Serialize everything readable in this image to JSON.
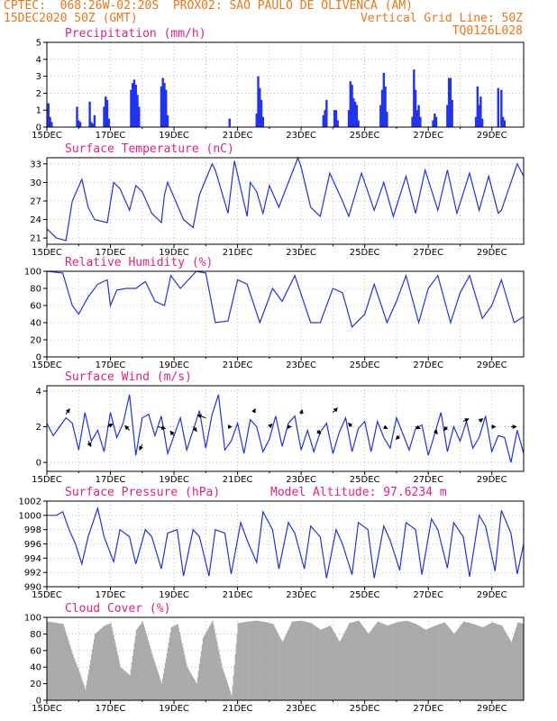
{
  "header": {
    "source": "CPTEC:",
    "coords": "068:26W-02:20S",
    "location": "PROX02: SAO PAULO DE OLIVENCA (AM)",
    "datetime": "15DEC2020 50Z (GMT)",
    "grid_note": "Vertical Grid Line: 50Z",
    "code": "TQ0126L028"
  },
  "colors": {
    "header": "#e8761a",
    "title": "#e0208a",
    "line": "#2233dd",
    "bar": "#2233ee",
    "cloud": "#aaaaaa"
  },
  "chart_data": [
    {
      "type": "bar",
      "title": "Precipitation (mm/h)",
      "ylim": [
        0,
        5
      ],
      "yticks": [
        "0",
        "1",
        "2",
        "3",
        "4",
        "5"
      ],
      "xticks": [
        "15DEC",
        "17DEC",
        "19DEC",
        "21DEC",
        "23DEC",
        "25DEC",
        "27DEC",
        "29DEC"
      ],
      "x_range_days": [
        0,
        15
      ],
      "series": [
        {
          "name": "precipitation",
          "x": [
            0.05,
            0.1,
            0.15,
            0.95,
            1.0,
            1.05,
            1.35,
            1.4,
            1.45,
            1.5,
            1.8,
            1.85,
            1.9,
            1.95,
            2.65,
            2.7,
            2.75,
            2.8,
            2.85,
            2.9,
            3.6,
            3.65,
            3.7,
            3.75,
            3.8,
            5.75,
            6.6,
            6.65,
            6.7,
            6.75,
            6.8,
            8.7,
            8.75,
            8.8,
            9.05,
            9.1,
            9.15,
            9.5,
            9.55,
            9.6,
            9.65,
            9.7,
            9.75,
            9.8,
            10.5,
            10.55,
            10.6,
            10.65,
            10.7,
            11.5,
            11.55,
            11.6,
            11.65,
            11.7,
            11.75,
            12.15,
            12.2,
            12.25,
            12.6,
            12.65,
            12.7,
            12.75,
            13.5,
            13.55,
            13.6,
            13.65,
            13.7,
            14.2,
            14.3,
            14.35,
            14.4
          ],
          "values": [
            1.4,
            0.6,
            0.3,
            1.2,
            0.4,
            0.3,
            1.5,
            0.3,
            0.2,
            0.7,
            1.2,
            1.8,
            1.6,
            0.5,
            2.2,
            2.6,
            2.8,
            2.5,
            1.9,
            1.2,
            2.4,
            2.9,
            2.6,
            2.2,
            0.7,
            0.5,
            0.8,
            3.0,
            2.3,
            1.6,
            0.6,
            0.7,
            1.0,
            1.6,
            1.0,
            1.0,
            0.4,
            1.0,
            2.7,
            2.5,
            1.7,
            1.5,
            1.3,
            0.4,
            1.3,
            2.2,
            3.2,
            2.4,
            0.9,
            0.6,
            3.4,
            2.2,
            1.0,
            1.3,
            0.6,
            0.4,
            0.8,
            0.6,
            1.3,
            2.9,
            2.9,
            1.6,
            0.6,
            2.4,
            1.3,
            1.8,
            0.5,
            2.3,
            2.2,
            0.6,
            0.4
          ]
        }
      ]
    },
    {
      "type": "line",
      "title": "Surface Temperature (nC)",
      "ylim": [
        20,
        34
      ],
      "yticks": [
        "21",
        "24",
        "27",
        "30",
        "33"
      ],
      "xticks": [
        "15DEC",
        "17DEC",
        "19DEC",
        "21DEC",
        "23DEC",
        "25DEC",
        "27DEC",
        "29DEC"
      ],
      "x_range_days": [
        0,
        15
      ],
      "series": [
        {
          "name": "temperature",
          "x": [
            0,
            0.3,
            0.6,
            0.8,
            1.1,
            1.3,
            1.5,
            1.9,
            2.1,
            2.3,
            2.6,
            2.8,
            3.0,
            3.3,
            3.6,
            3.7,
            3.8,
            4.3,
            4.6,
            4.8,
            5.2,
            5.3,
            5.7,
            5.9,
            6.3,
            6.4,
            6.6,
            6.8,
            7.0,
            7.3,
            7.6,
            7.9,
            8.0,
            8.3,
            8.6,
            8.9,
            9.3,
            9.5,
            9.9,
            10.3,
            10.6,
            10.9,
            11.3,
            11.6,
            11.9,
            12.3,
            12.6,
            12.9,
            13.3,
            13.6,
            13.9,
            14.2,
            14.3,
            14.6,
            14.8,
            15.0
          ],
          "values": [
            22.5,
            21,
            20.6,
            27,
            30.5,
            26,
            24,
            23.5,
            30,
            29,
            25.5,
            29.5,
            28.5,
            25,
            23.5,
            28,
            30,
            24,
            22.7,
            28,
            33,
            32,
            25,
            33.5,
            24.5,
            30,
            28.5,
            25,
            29.5,
            26,
            30,
            34,
            32.5,
            26,
            24.5,
            31.5,
            27,
            24.5,
            31.5,
            25.5,
            30,
            24.5,
            31,
            25,
            32,
            25.5,
            32,
            25,
            31.5,
            25.5,
            31,
            25,
            25.5,
            30,
            33,
            31
          ]
        }
      ]
    },
    {
      "type": "line",
      "title": "Relative Humidity (%)",
      "ylim": [
        0,
        100
      ],
      "yticks": [
        "0",
        "20",
        "40",
        "60",
        "80",
        "100"
      ],
      "xticks": [
        "15DEC",
        "17DEC",
        "19DEC",
        "21DEC",
        "23DEC",
        "25DEC",
        "27DEC",
        "29DEC"
      ],
      "x_range_days": [
        0,
        15
      ],
      "series": [
        {
          "name": "humidity",
          "x": [
            0,
            0.5,
            0.8,
            1.0,
            1.3,
            1.6,
            1.9,
            2.0,
            2.2,
            2.5,
            2.8,
            3.1,
            3.4,
            3.7,
            3.9,
            4.2,
            4.7,
            5.0,
            5.3,
            5.7,
            6.0,
            6.3,
            6.7,
            7.1,
            7.4,
            7.8,
            8.3,
            8.6,
            9.0,
            9.3,
            9.6,
            10.0,
            10.3,
            10.7,
            11.0,
            11.3,
            11.7,
            12.0,
            12.3,
            12.7,
            13.0,
            13.3,
            13.7,
            14.0,
            14.3,
            14.7,
            15.0
          ],
          "values": [
            100,
            98,
            60,
            50,
            70,
            85,
            90,
            60,
            78,
            80,
            80,
            88,
            65,
            60,
            95,
            80,
            100,
            98,
            40,
            42,
            90,
            85,
            40,
            80,
            65,
            95,
            40,
            40,
            80,
            75,
            35,
            50,
            85,
            40,
            65,
            95,
            40,
            80,
            95,
            40,
            75,
            95,
            45,
            60,
            90,
            40,
            47
          ]
        }
      ]
    },
    {
      "type": "line",
      "title": "Surface Wind (m/s)",
      "ylim": [
        -0.5,
        4.3
      ],
      "yticks": [
        "0",
        "2",
        "4"
      ],
      "xticks": [
        "15DEC",
        "17DEC",
        "19DEC",
        "21DEC",
        "23DEC",
        "25DEC",
        "27DEC",
        "29DEC"
      ],
      "x_range_days": [
        0,
        15
      ],
      "series": [
        {
          "name": "wind_speed",
          "x": [
            0,
            0.2,
            0.4,
            0.6,
            0.8,
            1.0,
            1.2,
            1.4,
            1.6,
            1.8,
            2.0,
            2.2,
            2.4,
            2.6,
            2.8,
            3.0,
            3.2,
            3.4,
            3.6,
            3.8,
            4.0,
            4.2,
            4.4,
            4.6,
            4.8,
            5.0,
            5.2,
            5.4,
            5.6,
            5.8,
            6.0,
            6.2,
            6.4,
            6.6,
            6.8,
            7.0,
            7.2,
            7.4,
            7.6,
            7.8,
            8.0,
            8.2,
            8.4,
            8.6,
            8.8,
            9.0,
            9.2,
            9.4,
            9.6,
            9.8,
            10.0,
            10.2,
            10.4,
            10.6,
            10.8,
            11.0,
            11.2,
            11.4,
            11.6,
            11.8,
            12.0,
            12.2,
            12.4,
            12.6,
            12.8,
            13.0,
            13.2,
            13.4,
            13.6,
            13.8,
            14.0,
            14.2,
            14.4,
            14.6,
            14.8,
            15.0
          ],
          "values": [
            2.2,
            1.5,
            2.0,
            2.5,
            2.2,
            0.7,
            2.8,
            1.2,
            1.8,
            0.6,
            2.8,
            1.4,
            2.2,
            3.8,
            0.4,
            2.5,
            2.7,
            1.5,
            2.6,
            0.5,
            1.5,
            2.5,
            0.7,
            1.8,
            2.9,
            0.8,
            2.7,
            3.8,
            0.7,
            1.2,
            2.2,
            0.5,
            2.4,
            2.0,
            0.6,
            1.3,
            2.6,
            0.9,
            2.2,
            2.6,
            0.7,
            1.8,
            0.6,
            1.7,
            2.2,
            0.5,
            1.7,
            2.5,
            0.6,
            1.9,
            2.3,
            0.6,
            2.3,
            1.4,
            0.8,
            2.5,
            1.6,
            0.7,
            1.9,
            2.1,
            0.4,
            1.6,
            2.8,
            0.6,
            2.0,
            1.2,
            2.3,
            0.8,
            1.4,
            2.6,
            0.6,
            1.5,
            1.4,
            0.0,
            1.8,
            0.5
          ]
        }
      ]
    },
    {
      "type": "line",
      "title": "Surface Pressure (hPa)",
      "subtitle": "Model Altitude: 97.6234 m",
      "ylim": [
        990,
        1002
      ],
      "yticks": [
        "990",
        "992",
        "994",
        "996",
        "998",
        "1000",
        "1002"
      ],
      "xticks": [
        "15DEC",
        "17DEC",
        "19DEC",
        "21DEC",
        "23DEC",
        "25DEC",
        "27DEC",
        "29DEC"
      ],
      "x_range_days": [
        0,
        15
      ],
      "series": [
        {
          "name": "pressure",
          "x": [
            0,
            0.3,
            0.5,
            0.7,
            0.9,
            1.1,
            1.3,
            1.6,
            1.8,
            2.1,
            2.3,
            2.6,
            2.8,
            3.1,
            3.3,
            3.6,
            3.8,
            4.1,
            4.3,
            4.6,
            4.8,
            5.1,
            5.3,
            5.6,
            5.8,
            6.1,
            6.3,
            6.6,
            6.8,
            7.1,
            7.3,
            7.6,
            7.8,
            8.1,
            8.3,
            8.6,
            8.8,
            9.1,
            9.3,
            9.6,
            9.8,
            10.1,
            10.3,
            10.6,
            10.8,
            11.1,
            11.3,
            11.6,
            11.8,
            12.1,
            12.3,
            12.6,
            12.8,
            13.1,
            13.3,
            13.6,
            13.8,
            14.1,
            14.3,
            14.6,
            14.8,
            15.0
          ],
          "values": [
            1000,
            1000,
            1000.5,
            998,
            996,
            993.2,
            997,
            1001,
            997,
            993.5,
            998,
            997,
            993.2,
            998,
            997,
            992.5,
            997.5,
            998,
            991.5,
            998,
            997,
            991.5,
            998,
            997.5,
            991.8,
            999,
            996.5,
            993.4,
            1000.5,
            998,
            992.5,
            999,
            997.5,
            992.5,
            998.5,
            997,
            991.2,
            998,
            996,
            991.7,
            999,
            998,
            991.2,
            998.5,
            996.5,
            992.3,
            999,
            998,
            991.7,
            999.5,
            998,
            992.6,
            999,
            997,
            991.4,
            1000,
            998.5,
            992.2,
            1000.7,
            997.5,
            991.8,
            996
          ]
        }
      ]
    },
    {
      "type": "bar",
      "title": "Cloud Cover (%)",
      "ylim": [
        0,
        100
      ],
      "yticks": [
        "0",
        "20",
        "40",
        "60",
        "80",
        "100"
      ],
      "xticks": [
        "15DEC",
        "17DEC",
        "19DEC",
        "21DEC",
        "23DEC",
        "25DEC",
        "27DEC",
        "29DEC"
      ],
      "x_range_days": [
        0,
        15
      ],
      "series": [
        {
          "name": "cloud_cover",
          "x": [
            0,
            0.5,
            0.8,
            1.0,
            1.2,
            1.5,
            1.8,
            2.0,
            2.3,
            2.6,
            2.8,
            3.0,
            3.3,
            3.6,
            3.9,
            4.1,
            4.4,
            4.7,
            4.9,
            5.2,
            5.5,
            5.8,
            6.0,
            6.3,
            6.6,
            6.9,
            7.1,
            7.4,
            7.7,
            8.0,
            8.3,
            8.6,
            8.9,
            9.2,
            9.5,
            9.8,
            10.1,
            10.4,
            10.7,
            11.0,
            11.3,
            11.6,
            11.9,
            12.2,
            12.5,
            12.8,
            13.1,
            13.4,
            13.7,
            14.0,
            14.3,
            14.6,
            14.8,
            15.0
          ],
          "values": [
            95,
            92,
            55,
            35,
            12,
            80,
            90,
            93,
            40,
            30,
            85,
            95,
            55,
            20,
            88,
            92,
            40,
            20,
            75,
            96,
            40,
            5,
            93,
            95,
            96,
            94,
            92,
            70,
            95,
            96,
            93,
            85,
            90,
            70,
            93,
            96,
            80,
            95,
            90,
            94,
            96,
            92,
            85,
            90,
            94,
            80,
            95,
            92,
            88,
            94,
            90,
            70,
            94,
            92
          ]
        }
      ]
    }
  ]
}
